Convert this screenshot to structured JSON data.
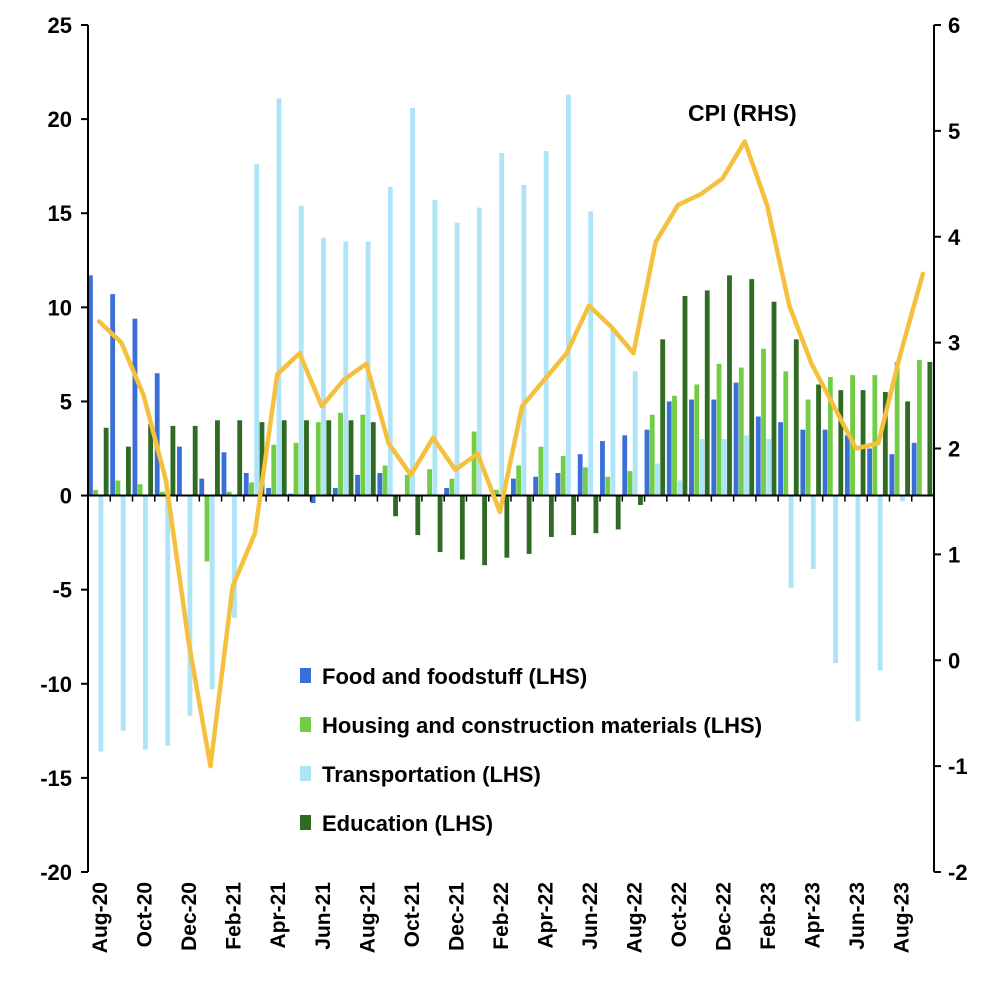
{
  "chart_data": {
    "type": "bar+line",
    "title": "",
    "months": [
      "Aug-20",
      "Sep-20",
      "Oct-20",
      "Nov-20",
      "Dec-20",
      "Jan-21",
      "Feb-21",
      "Mar-21",
      "Apr-21",
      "May-21",
      "Jun-21",
      "Jul-21",
      "Aug-21",
      "Sep-21",
      "Oct-21",
      "Nov-21",
      "Dec-21",
      "Jan-22",
      "Feb-22",
      "Mar-22",
      "Apr-22",
      "May-22",
      "Jun-22",
      "Jul-22",
      "Aug-22",
      "Sep-22",
      "Oct-22",
      "Nov-22",
      "Dec-22",
      "Jan-23",
      "Feb-23",
      "Mar-23",
      "Apr-23",
      "May-23",
      "Jun-23",
      "Jul-23",
      "Aug-23",
      "Sep-23"
    ],
    "x_tick_labels": [
      "Aug-20",
      "Oct-20",
      "Dec-20",
      "Feb-21",
      "Apr-21",
      "Jun-21",
      "Aug-21",
      "Oct-21",
      "Dec-21",
      "Feb-22",
      "Apr-22",
      "Jun-22",
      "Aug-22",
      "Oct-22",
      "Dec-22",
      "Feb-23",
      "Apr-23",
      "Jun-23",
      "Aug-23"
    ],
    "left_axis": {
      "ylim": [
        -20,
        25
      ],
      "ticks": [
        25,
        20,
        15,
        10,
        5,
        0,
        -5,
        -10,
        -15,
        -20
      ]
    },
    "right_axis": {
      "ylim": [
        -2,
        6
      ],
      "ticks": [
        6,
        5,
        4,
        3,
        2,
        1,
        0,
        -1,
        -2
      ]
    },
    "series": [
      {
        "name": "Food and foodstuff (LHS)",
        "axis": "left",
        "kind": "bar",
        "color": "#3b6fd8",
        "values": [
          11.7,
          10.7,
          9.4,
          6.5,
          2.6,
          0.9,
          2.3,
          1.2,
          0.4,
          0.1,
          -0.4,
          0.4,
          1.1,
          1.2,
          0.0,
          0.0,
          0.4,
          0.0,
          0.0,
          0.9,
          1.0,
          1.2,
          2.2,
          2.9,
          3.2,
          3.5,
          5.0,
          5.1,
          5.1,
          6.0,
          4.2,
          3.9,
          3.5,
          3.5,
          3.2,
          2.5,
          2.2,
          2.8
        ]
      },
      {
        "name": "Housing and construction materials (LHS)",
        "axis": "left",
        "kind": "bar",
        "color": "#72cc46",
        "values": [
          0.3,
          0.8,
          0.6,
          0.2,
          0.0,
          -3.5,
          0.2,
          0.7,
          2.7,
          2.8,
          3.9,
          4.4,
          4.3,
          1.6,
          1.1,
          1.4,
          0.9,
          3.4,
          0.3,
          1.6,
          2.6,
          2.1,
          1.5,
          1.0,
          1.3,
          4.3,
          5.3,
          5.9,
          7.0,
          6.8,
          7.8,
          6.6,
          5.1,
          6.3,
          6.4,
          6.4,
          7.1,
          7.2
        ]
      },
      {
        "name": "Transportation (LHS)",
        "axis": "left",
        "kind": "bar",
        "color": "#aee4f7",
        "values": [
          -13.6,
          -12.5,
          -13.5,
          -13.3,
          -11.7,
          -10.3,
          -6.5,
          17.6,
          21.1,
          15.4,
          13.7,
          13.5,
          13.5,
          16.4,
          20.6,
          15.7,
          14.5,
          15.3,
          18.2,
          16.5,
          18.3,
          21.3,
          15.1,
          8.8,
          6.6,
          1.7,
          0.8,
          3.0,
          3.0,
          3.2,
          3.0,
          -4.9,
          -3.9,
          -8.9,
          -12.0,
          -9.3,
          -0.3,
          0.0
        ]
      },
      {
        "name": "Education (LHS)",
        "axis": "left",
        "kind": "bar",
        "color": "#2f6b22",
        "values": [
          3.6,
          2.6,
          3.8,
          3.7,
          3.7,
          4.0,
          4.0,
          3.9,
          4.0,
          4.0,
          4.0,
          4.0,
          3.9,
          -1.1,
          -2.1,
          -3.0,
          -3.4,
          -3.7,
          -3.3,
          -3.1,
          -2.2,
          -2.1,
          -2.0,
          -1.8,
          -0.5,
          8.3,
          10.6,
          10.9,
          11.7,
          11.5,
          10.3,
          8.3,
          5.9,
          5.6,
          5.6,
          5.5,
          5.0,
          7.1
        ]
      },
      {
        "name": "CPI (RHS)",
        "axis": "right",
        "kind": "line",
        "color": "#f4c03e",
        "values": [
          3.2,
          3.0,
          2.5,
          1.7,
          0.2,
          -1.0,
          0.7,
          1.2,
          2.7,
          2.9,
          2.4,
          2.65,
          2.8,
          2.05,
          1.75,
          2.1,
          1.8,
          1.95,
          1.4,
          2.4,
          2.65,
          2.9,
          3.35,
          3.15,
          2.9,
          3.95,
          4.3,
          4.4,
          4.55,
          4.9,
          4.3,
          3.35,
          2.8,
          2.4,
          2.0,
          2.05,
          2.9,
          3.65
        ]
      }
    ],
    "legend": [
      "Food and foodstuff (LHS)",
      "Housing and construction materials (LHS)",
      "Transportation (LHS)",
      "Education (LHS)"
    ],
    "legend_position": "bottom-center",
    "annotation": "CPI (RHS)",
    "grid": false
  }
}
